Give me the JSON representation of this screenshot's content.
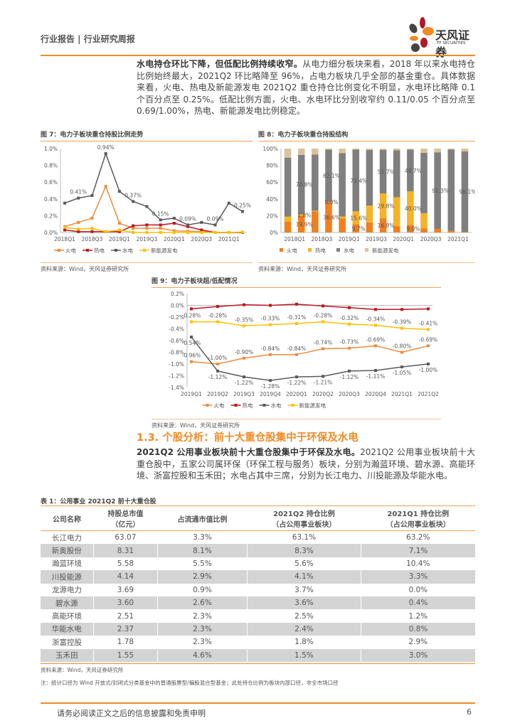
{
  "header": {
    "title": "行业报告 | 行业研究周报",
    "logo_text": "天风证券",
    "logo_sub": "TF SECURITIES"
  },
  "intro": {
    "bold": "水电持仓环比下降，但低配比例持续收窄。",
    "text": "从电力细分板块来看，2018 年以来水电持仓比例始终最大，2021Q2 环比略降至 96%，占电力板块几乎全部的基金重仓。具体数据来看，火电、热电及新能源发电 2021Q2 重仓持仓比例变化不明显，水电环比略降 0.1 个百分点至 0.25%。低配比例方面，火电、水电环比分别收窄约 0.11/0.05 个百分点至 0.69/1.00%，热电、新能源发电比例稳定。"
  },
  "colors": {
    "fire": "#f08a3c",
    "heat": "#c0141e",
    "hydro": "#5a5a5a",
    "new": "#ffc000",
    "bar_fire": "#f07f1e",
    "bar_heat": "#f5b327",
    "bar_hydro": "#7f7f7f",
    "bar_new": "#d8c39c",
    "accent": "#f08a24"
  },
  "chart_data": [
    {
      "id": "fig7",
      "type": "line",
      "title": "图 7：电力子板块重仓持股比例走势",
      "source": "资料来源：Wind，天风证券研究所",
      "x": [
        "2018Q1",
        "2018Q2",
        "2018Q3",
        "2018Q4",
        "2019Q1",
        "2019Q2",
        "2019Q3",
        "2019Q4",
        "2020Q1",
        "2020Q2",
        "2020Q3",
        "2020Q4",
        "2021Q1",
        "2021Q2"
      ],
      "tick_labels": [
        "2018Q1",
        "2018Q3",
        "2019Q1",
        "2019Q3",
        "2020Q1",
        "2020Q3",
        "2021Q1"
      ],
      "ylim": [
        0,
        1.0
      ],
      "yticks": [
        "0.0%",
        "0.2%",
        "0.4%",
        "0.6%",
        "0.8%",
        "1.0%"
      ],
      "legend": "bottom",
      "series": [
        {
          "name": "火电",
          "color": "#f08a3c",
          "values": [
            0.07,
            0.12,
            0.17,
            0.55,
            0.11,
            0.05,
            0.05,
            0.05,
            0.02,
            0.015,
            0.01,
            0,
            0,
            0
          ]
        },
        {
          "name": "热电",
          "color": "#c0141e",
          "values": [
            0.03,
            0.01,
            0.01,
            0.01,
            0.01,
            0.08,
            0.09,
            0.09,
            0.11,
            0.07,
            0.03,
            0,
            0,
            0
          ]
        },
        {
          "name": "水电",
          "color": "#5a5a5a",
          "values": [
            0.35,
            0.41,
            0.44,
            0.94,
            0.49,
            0.37,
            0.31,
            0.15,
            0.17,
            0.09,
            0.12,
            0.09,
            0.35,
            0.25
          ],
          "labels": {
            "1": "0.41%",
            "3": "0.94%",
            "5": "0.37%",
            "7": "0.15%",
            "9": "0.09%",
            "11": "0.09%",
            "13": "0.25%"
          }
        },
        {
          "name": "新能源发电",
          "color": "#ffc000",
          "values": [
            0.06,
            0.04,
            0.05,
            0.01,
            0.03,
            0,
            0,
            0,
            0,
            0,
            0,
            0,
            0,
            0.005
          ]
        }
      ]
    },
    {
      "id": "fig8",
      "type": "bar",
      "stacked": true,
      "title": "图 8：电力子板块重仓持股结构",
      "source": "资料来源：Wind，天风证券研究所",
      "categories": [
        "2018Q1",
        "2018Q2",
        "2018Q3",
        "2018Q4",
        "2019Q1",
        "2019Q2",
        "2019Q3",
        "2019Q4",
        "2020Q1",
        "2020Q2",
        "2020Q3",
        "2020Q4",
        "2021Q1",
        "2021Q2"
      ],
      "tick_labels": [
        "2018Q1",
        "2018Q3",
        "2019Q1",
        "2019Q3",
        "2020Q1",
        "2020Q3",
        "2021Q1"
      ],
      "ylim": [
        0,
        100
      ],
      "yticks": [
        "0%",
        "20%",
        "40%",
        "60%",
        "80%",
        "100%"
      ],
      "legend": "bottom",
      "series": [
        {
          "name": "火电",
          "color": "#f07f1e",
          "values": [
            13,
            19.9,
            25,
            36.6,
            16.5,
            9.7,
            12,
            16.8,
            7.5,
            9.0,
            5,
            4.3,
            2,
            0.5
          ]
        },
        {
          "name": "热电",
          "color": "#f5b327",
          "values": [
            6,
            1.8,
            1,
            0.0,
            2.5,
            15.6,
            20,
            29.8,
            34.5,
            40.0,
            18,
            0,
            0,
            0
          ]
        },
        {
          "name": "水电",
          "color": "#7f7f7f",
          "values": [
            70,
            70.8,
            67,
            62.1,
            75.5,
            73.4,
            66.5,
            51.7,
            56,
            49.7,
            72,
            91.3,
            97,
            96.1
          ]
        },
        {
          "name": "新能源发电",
          "color": "#d8c39c",
          "values": [
            11,
            7.5,
            7,
            1.3,
            5.5,
            1.3,
            1.5,
            1.7,
            2,
            1.3,
            5,
            4.4,
            1,
            3.4
          ]
        }
      ],
      "data_labels": [
        [
          "1",
          "0",
          "19.9%"
        ],
        [
          "1",
          "1",
          "1.8%"
        ],
        [
          "1",
          "2",
          "70.8%"
        ],
        [
          "3",
          "0",
          "36.6%"
        ],
        [
          "3",
          "1",
          "0.0%"
        ],
        [
          "3",
          "2",
          "62.1%"
        ],
        [
          "5",
          "0",
          "9.7%"
        ],
        [
          "5",
          "1",
          "15.6%"
        ],
        [
          "5",
          "2",
          "73.4%"
        ],
        [
          "7",
          "0",
          "16.8%"
        ],
        [
          "7",
          "1",
          "29.8%"
        ],
        [
          "7",
          "2",
          "51.7%"
        ],
        [
          "9",
          "0",
          "9.0%"
        ],
        [
          "9",
          "1",
          "40.0%"
        ],
        [
          "9",
          "2",
          "49.7%"
        ],
        [
          "11",
          "2",
          "91.3%"
        ],
        [
          "13",
          "2",
          "96.1%"
        ]
      ]
    },
    {
      "id": "fig9",
      "type": "line",
      "title": "图 9：电力子板块超/低配情况",
      "source": "资料来源：Wind，天风证券研究所",
      "x": [
        "2019Q1",
        "2019Q2",
        "2019Q3",
        "2019Q4",
        "2020Q1",
        "2020Q2",
        "2020Q3",
        "2020Q4",
        "2021Q1",
        "2021Q2"
      ],
      "tick_labels": [
        "2019Q1",
        "2019Q2",
        "2019Q3",
        "2019Q4",
        "2020Q1",
        "2020Q2",
        "2020Q3",
        "2020Q4",
        "2021Q1",
        "2021Q2"
      ],
      "ylim": [
        -1.4,
        0.2
      ],
      "yticks": [
        "-1.4%",
        "-1.2%",
        "-1.0%",
        "-0.8%",
        "-0.6%",
        "-0.4%",
        "-0.2%",
        "0.0%",
        "0.2%"
      ],
      "legend": "bottom",
      "series": [
        {
          "name": "火电",
          "color": "#f08a3c",
          "values": [
            -0.96,
            -1.0,
            -0.9,
            -0.84,
            -0.84,
            -0.74,
            -0.73,
            -0.69,
            -0.8,
            -0.69
          ],
          "labels": {
            "0": "-0.96%",
            "1": "-1.00%",
            "2": "-0.90%",
            "3": "-0.84%",
            "4": "-0.84%",
            "5": "-0.74%",
            "6": "-0.73%",
            "7": "-0.69%",
            "8": "-0.80%",
            "9": "-0.69%"
          }
        },
        {
          "name": "热电",
          "color": "#c0141e",
          "values": [
            -0.06,
            -0.02,
            0.01,
            0.0,
            0.02,
            -0.01,
            -0.04,
            -0.07,
            -0.07,
            -0.06
          ]
        },
        {
          "name": "水电",
          "color": "#5a5a5a",
          "values": [
            -0.54,
            -1.12,
            -1.22,
            -1.28,
            -1.22,
            -1.21,
            -1.12,
            -1.11,
            -1.05,
            -1.0
          ],
          "labels": {
            "0": "-0.54%",
            "1": "-1.12%",
            "2": "-1.22%",
            "3": "-1.28%",
            "4": "-1.22%",
            "5": "-1.21%",
            "6": "-1.12%",
            "7": "-1.11%",
            "8": "-1.05%",
            "9": "-1.00%"
          }
        },
        {
          "name": "新能源发电",
          "color": "#ffc000",
          "values": [
            -0.28,
            -0.28,
            -0.35,
            -0.33,
            -0.31,
            -0.28,
            -0.32,
            -0.34,
            -0.39,
            -0.41
          ],
          "labels": {
            "0": "-0.28%",
            "1": "-0.28%",
            "2": "-0.35%",
            "3": "-0.33%",
            "4": "-0.31%",
            "5": "-0.28%",
            "6": "-0.32%",
            "7": "-0.34%",
            "8": "-0.39%",
            "9": "-0.41%"
          }
        }
      ]
    }
  ],
  "section": {
    "title": "1.3. 个股分析：前十大重仓股集中于环保及水电",
    "bold": "2021Q2 公用事业板块前十大重仓股集中于环保及水电。",
    "text": "2021Q2 公用事业板块前十大重仓股中，五家公司属环保（环保工程与服务）板块，分别为瀚蓝环境、碧水源、高能环境、浙富控股和玉禾田；水电占其中三席，分别为长江电力、川投能源及华能水电。"
  },
  "table": {
    "title": "表 1：公用事业 2021Q2 前十大重仓股",
    "headers": [
      [
        "公司名称",
        ""
      ],
      [
        "持股总市值",
        "（亿元）"
      ],
      [
        "占流通市值比例",
        ""
      ],
      [
        "2021Q2 持仓比例",
        "（占公用事业板块）"
      ],
      [
        "2021Q1 持仓比例",
        "（占公用事业板块）"
      ]
    ],
    "rows": [
      [
        "长江电力",
        "63.07",
        "3.3%",
        "63.1%",
        "63.2%"
      ],
      [
        "新奥股份",
        "8.31",
        "8.1%",
        "8.3%",
        "7.1%"
      ],
      [
        "瀚蓝环境",
        "5.58",
        "5.5%",
        "5.6%",
        "10.4%"
      ],
      [
        "川投能源",
        "4.14",
        "2.9%",
        "4.1%",
        "3.3%"
      ],
      [
        "龙源电力",
        "3.69",
        "0.9%",
        "3.7%",
        "0.0%"
      ],
      [
        "碧水源",
        "3.60",
        "2.6%",
        "3.6%",
        "0.4%"
      ],
      [
        "高能环境",
        "2.51",
        "2.3%",
        "2.5%",
        "1.2%"
      ],
      [
        "华能水电",
        "2.37",
        "2.3%",
        "2.4%",
        "0.8%"
      ],
      [
        "浙富控股",
        "1.78",
        "2.3%",
        "1.8%",
        "2.9%"
      ],
      [
        "玉禾田",
        "1.55",
        "4.6%",
        "1.5%",
        "3.0%"
      ]
    ],
    "source": "资料来源：Wind，天风证券研究所",
    "note": "注：统计口径为 Wind 开放式/封闭式分类基金中的普通股票型/偏股混合型基金；此处持仓比例为板块内部口径，非全市场口径"
  },
  "footer": {
    "disclaimer": "请务必阅读正文之后的信息披露和免责申明",
    "page": "6"
  }
}
